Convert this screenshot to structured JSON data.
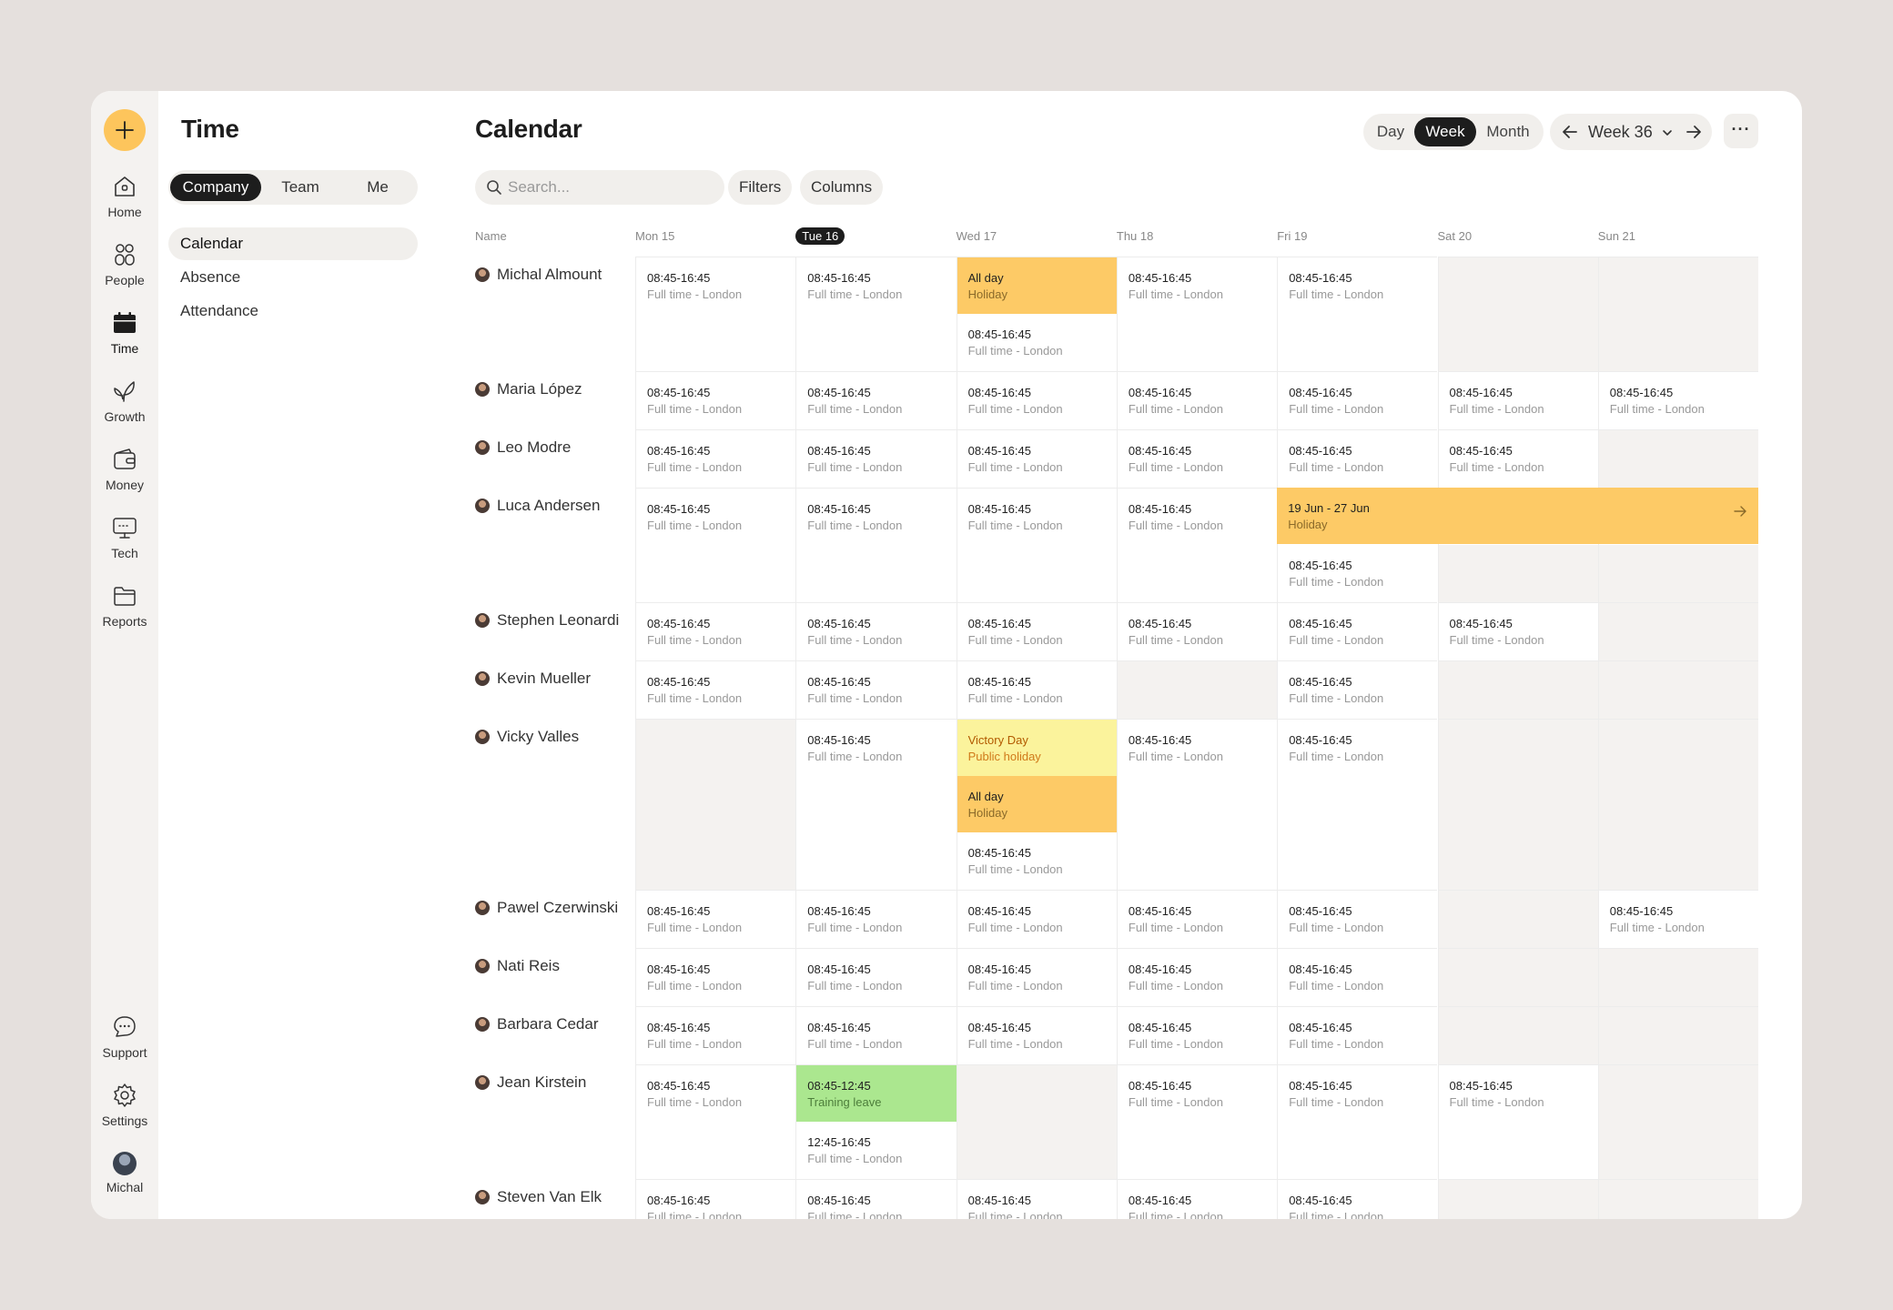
{
  "rail": {
    "items": [
      {
        "label": "Home",
        "icon": "home-icon"
      },
      {
        "label": "People",
        "icon": "people-icon"
      },
      {
        "label": "Time",
        "icon": "calendar-icon"
      },
      {
        "label": "Growth",
        "icon": "leaf-icon"
      },
      {
        "label": "Money",
        "icon": "wallet-icon"
      },
      {
        "label": "Tech",
        "icon": "monitor-icon"
      },
      {
        "label": "Reports",
        "icon": "folder-icon"
      }
    ],
    "bottom": [
      {
        "label": "Support",
        "icon": "chat-icon"
      },
      {
        "label": "Settings",
        "icon": "gear-icon"
      },
      {
        "label": "Michal",
        "icon": "avatar"
      }
    ],
    "accent": "#fdc55c"
  },
  "sidebar": {
    "title": "Time",
    "scopes": [
      "Company",
      "Team",
      "Me"
    ],
    "selected_scope": "Company",
    "nav": [
      "Calendar",
      "Absence",
      "Attendance"
    ],
    "selected_nav": "Calendar"
  },
  "main": {
    "title": "Calendar",
    "views": [
      "Day",
      "Week",
      "Month"
    ],
    "selected_view": "Week",
    "week_label": "Week 36",
    "more_label": "···",
    "search_placeholder": "Search...",
    "filters_label": "Filters",
    "columns_label": "Columns"
  },
  "calendar": {
    "name_header": "Name",
    "days": [
      "Mon 15",
      "Tue 16",
      "Wed 17",
      "Thu 18",
      "Fri 19",
      "Sat 20",
      "Sun 21"
    ],
    "today_index": 1,
    "rows": [
      {
        "name": "Michal Almount",
        "cells": [
          [
            {
              "t": "08:45-16:45",
              "s": "Full time - London"
            }
          ],
          [
            {
              "t": "08:45-16:45",
              "s": "Full time - London"
            }
          ],
          [
            {
              "t": "All day",
              "s": "Holiday",
              "kind": "holiday"
            },
            {
              "t": "08:45-16:45",
              "s": "Full time - London"
            }
          ],
          [
            {
              "t": "08:45-16:45",
              "s": "Full time - London"
            }
          ],
          [
            {
              "t": "08:45-16:45",
              "s": "Full time - London"
            }
          ],
          [],
          []
        ]
      },
      {
        "name": "Maria López",
        "cells": [
          [
            {
              "t": "08:45-16:45",
              "s": "Full time - London"
            }
          ],
          [
            {
              "t": "08:45-16:45",
              "s": "Full time - London"
            }
          ],
          [
            {
              "t": "08:45-16:45",
              "s": "Full time - London"
            }
          ],
          [
            {
              "t": "08:45-16:45",
              "s": "Full time - London"
            }
          ],
          [
            {
              "t": "08:45-16:45",
              "s": "Full time - London"
            }
          ],
          [
            {
              "t": "08:45-16:45",
              "s": "Full time - London"
            }
          ],
          [
            {
              "t": "08:45-16:45",
              "s": "Full time - London"
            }
          ]
        ]
      },
      {
        "name": "Leo Modre",
        "cells": [
          [
            {
              "t": "08:45-16:45",
              "s": "Full time - London"
            }
          ],
          [
            {
              "t": "08:45-16:45",
              "s": "Full time - London"
            }
          ],
          [
            {
              "t": "08:45-16:45",
              "s": "Full time - London"
            }
          ],
          [
            {
              "t": "08:45-16:45",
              "s": "Full time - London"
            }
          ],
          [
            {
              "t": "08:45-16:45",
              "s": "Full time - London"
            }
          ],
          [
            {
              "t": "08:45-16:45",
              "s": "Full time - London"
            }
          ],
          []
        ]
      },
      {
        "name": "Luca Andersen",
        "band": {
          "t": "19 Jun - 27 Jun",
          "s": "Holiday"
        },
        "cells": [
          [
            {
              "t": "08:45-16:45",
              "s": "Full time - London"
            }
          ],
          [
            {
              "t": "08:45-16:45",
              "s": "Full time - London"
            }
          ],
          [
            {
              "t": "08:45-16:45",
              "s": "Full time - London"
            }
          ],
          [
            {
              "t": "08:45-16:45",
              "s": "Full time - London"
            }
          ],
          [
            {
              "t": "08:45-16:45",
              "s": "Full time - London"
            }
          ],
          [],
          []
        ]
      },
      {
        "name": "Stephen Leonardi",
        "cells": [
          [
            {
              "t": "08:45-16:45",
              "s": "Full time - London"
            }
          ],
          [
            {
              "t": "08:45-16:45",
              "s": "Full time - London"
            }
          ],
          [
            {
              "t": "08:45-16:45",
              "s": "Full time - London"
            }
          ],
          [
            {
              "t": "08:45-16:45",
              "s": "Full time - London"
            }
          ],
          [
            {
              "t": "08:45-16:45",
              "s": "Full time - London"
            }
          ],
          [
            {
              "t": "08:45-16:45",
              "s": "Full time - London"
            }
          ],
          []
        ]
      },
      {
        "name": "Kevin Mueller",
        "cells": [
          [
            {
              "t": "08:45-16:45",
              "s": "Full time - London"
            }
          ],
          [
            {
              "t": "08:45-16:45",
              "s": "Full time - London"
            }
          ],
          [
            {
              "t": "08:45-16:45",
              "s": "Full time - London"
            }
          ],
          [],
          [
            {
              "t": "08:45-16:45",
              "s": "Full time - London"
            }
          ],
          [],
          []
        ]
      },
      {
        "name": "Vicky Valles",
        "cells": [
          [],
          [
            {
              "t": "08:45-16:45",
              "s": "Full time - London"
            }
          ],
          [
            {
              "t": "Victory Day",
              "s": "Public holiday",
              "kind": "public"
            },
            {
              "t": "All day",
              "s": "Holiday",
              "kind": "holiday"
            },
            {
              "t": "08:45-16:45",
              "s": "Full time - London"
            }
          ],
          [
            {
              "t": "08:45-16:45",
              "s": "Full time - London"
            }
          ],
          [
            {
              "t": "08:45-16:45",
              "s": "Full time - London"
            }
          ],
          [],
          []
        ]
      },
      {
        "name": "Pawel Czerwinski",
        "cells": [
          [
            {
              "t": "08:45-16:45",
              "s": "Full time - London"
            }
          ],
          [
            {
              "t": "08:45-16:45",
              "s": "Full time - London"
            }
          ],
          [
            {
              "t": "08:45-16:45",
              "s": "Full time - London"
            }
          ],
          [
            {
              "t": "08:45-16:45",
              "s": "Full time - London"
            }
          ],
          [
            {
              "t": "08:45-16:45",
              "s": "Full time - London"
            }
          ],
          [],
          [
            {
              "t": "08:45-16:45",
              "s": "Full time - London"
            }
          ]
        ]
      },
      {
        "name": "Nati Reis",
        "cells": [
          [
            {
              "t": "08:45-16:45",
              "s": "Full time - London"
            }
          ],
          [
            {
              "t": "08:45-16:45",
              "s": "Full time - London"
            }
          ],
          [
            {
              "t": "08:45-16:45",
              "s": "Full time - London"
            }
          ],
          [
            {
              "t": "08:45-16:45",
              "s": "Full time - London"
            }
          ],
          [
            {
              "t": "08:45-16:45",
              "s": "Full time - London"
            }
          ],
          [],
          []
        ]
      },
      {
        "name": "Barbara Cedar",
        "cells": [
          [
            {
              "t": "08:45-16:45",
              "s": "Full time - London"
            }
          ],
          [
            {
              "t": "08:45-16:45",
              "s": "Full time - London"
            }
          ],
          [
            {
              "t": "08:45-16:45",
              "s": "Full time - London"
            }
          ],
          [
            {
              "t": "08:45-16:45",
              "s": "Full time - London"
            }
          ],
          [
            {
              "t": "08:45-16:45",
              "s": "Full time - London"
            }
          ],
          [],
          []
        ]
      },
      {
        "name": "Jean Kirstein",
        "cells": [
          [
            {
              "t": "08:45-16:45",
              "s": "Full time - London"
            }
          ],
          [
            {
              "t": "08:45-12:45",
              "s": "Training leave",
              "kind": "training"
            },
            {
              "t": "12:45-16:45",
              "s": "Full time - London"
            }
          ],
          [],
          [
            {
              "t": "08:45-16:45",
              "s": "Full time - London"
            }
          ],
          [
            {
              "t": "08:45-16:45",
              "s": "Full time - London"
            }
          ],
          [
            {
              "t": "08:45-16:45",
              "s": "Full time - London"
            }
          ],
          []
        ]
      },
      {
        "name": "Steven Van Elk",
        "cells": [
          [
            {
              "t": "08:45-16:45",
              "s": "Full time - London"
            }
          ],
          [
            {
              "t": "08:45-16:45",
              "s": "Full time - London"
            }
          ],
          [
            {
              "t": "08:45-16:45",
              "s": "Full time - London"
            }
          ],
          [
            {
              "t": "08:45-16:45",
              "s": "Full time - London"
            }
          ],
          [
            {
              "t": "08:45-16:45",
              "s": "Full time - London"
            }
          ],
          [],
          []
        ]
      }
    ]
  },
  "colors": {
    "holiday": "#fdca66",
    "public_holiday": "#fbf39c",
    "training": "#abe78f",
    "off_day": "#f4f2f0",
    "dark": "#1d1d1d"
  }
}
